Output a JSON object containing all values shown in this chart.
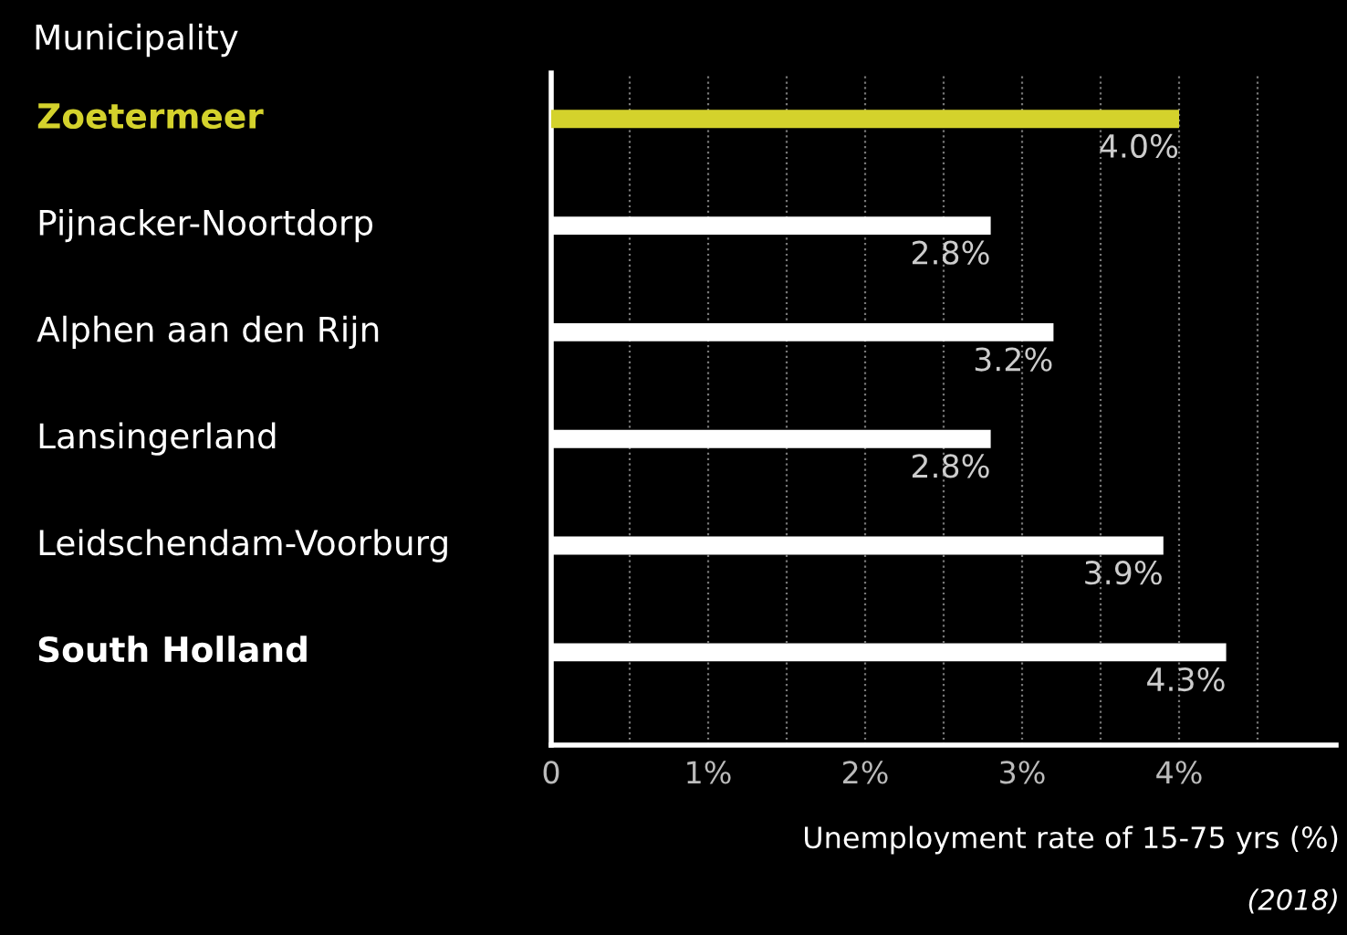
{
  "chart_data": {
    "type": "bar",
    "orientation": "horizontal",
    "ylabel": "Municipality",
    "xlabel": "Unemployment rate of 15-75 yrs (%)",
    "categories": [
      "Zoetermeer",
      "Pijnacker-Noortdorp",
      "Alphen aan den Rijn",
      "Lansingerland",
      "Leidschendam-Voorburg",
      "South Holland"
    ],
    "values": [
      4.0,
      2.8,
      3.2,
      2.8,
      3.9,
      4.3
    ],
    "colors": [
      "#d4d22c",
      "#ffffff",
      "#ffffff",
      "#ffffff",
      "#ffffff",
      "#ffffff"
    ],
    "value_labels": [
      "4.0%",
      "2.8%",
      "3.2%",
      "2.8%",
      "3.9%",
      "4.3%"
    ],
    "xlim": [
      0,
      5
    ],
    "xticks": [
      0,
      {
        "value": 0.5,
        "label": null
      },
      {
        "value": 1,
        "label": "1%"
      },
      {
        "value": 1.5,
        "label": null
      },
      {
        "value": 2,
        "label": "2%"
      },
      {
        "value": 2.5,
        "label": null
      },
      {
        "value": 3,
        "label": "3%"
      },
      {
        "value": 3.5,
        "label": null
      },
      {
        "value": 4,
        "label": "4%"
      },
      {
        "value": 4.5,
        "label": null
      }
    ],
    "grid": "x",
    "annotations": [
      "(2018)"
    ]
  }
}
